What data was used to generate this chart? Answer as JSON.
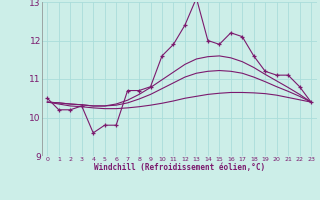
{
  "xlabel": "Windchill (Refroidissement éolien,°C)",
  "background_color": "#cceee8",
  "grid_color": "#aaddda",
  "line_color": "#7b1a6e",
  "xlim": [
    -0.5,
    23.5
  ],
  "ylim": [
    9,
    13
  ],
  "yticks": [
    9,
    10,
    11,
    12,
    13
  ],
  "xticks": [
    0,
    1,
    2,
    3,
    4,
    5,
    6,
    7,
    8,
    9,
    10,
    11,
    12,
    13,
    14,
    15,
    16,
    17,
    18,
    19,
    20,
    21,
    22,
    23
  ],
  "hours": [
    0,
    1,
    2,
    3,
    4,
    5,
    6,
    7,
    8,
    9,
    10,
    11,
    12,
    13,
    14,
    15,
    16,
    17,
    18,
    19,
    20,
    21,
    22,
    23
  ],
  "windchill": [
    10.5,
    10.2,
    10.2,
    10.3,
    9.6,
    9.8,
    9.8,
    10.7,
    10.7,
    10.8,
    11.6,
    11.9,
    12.4,
    13.1,
    12.0,
    11.9,
    12.2,
    12.1,
    11.6,
    11.2,
    11.1,
    11.1,
    10.8,
    10.4
  ],
  "smooth1": [
    10.4,
    10.35,
    10.3,
    10.28,
    10.25,
    10.23,
    10.23,
    10.25,
    10.28,
    10.32,
    10.37,
    10.43,
    10.5,
    10.55,
    10.6,
    10.63,
    10.65,
    10.65,
    10.64,
    10.62,
    10.58,
    10.52,
    10.46,
    10.4
  ],
  "smooth2": [
    10.4,
    10.38,
    10.35,
    10.33,
    10.3,
    10.3,
    10.32,
    10.38,
    10.48,
    10.6,
    10.75,
    10.9,
    11.05,
    11.15,
    11.2,
    11.22,
    11.2,
    11.15,
    11.05,
    10.93,
    10.8,
    10.68,
    10.55,
    10.4
  ],
  "smooth3": [
    10.4,
    10.38,
    10.35,
    10.33,
    10.3,
    10.3,
    10.35,
    10.45,
    10.6,
    10.78,
    10.98,
    11.18,
    11.38,
    11.52,
    11.58,
    11.6,
    11.55,
    11.45,
    11.3,
    11.12,
    10.95,
    10.78,
    10.6,
    10.4
  ]
}
